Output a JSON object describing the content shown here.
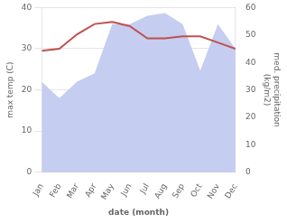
{
  "chart_data": {
    "type": "line",
    "xlabel": "date (month)",
    "ylabel": "max temp (C)",
    "y2label": "med. precipitation\n(kg/m2)",
    "categories": [
      "Jan",
      "Feb",
      "Mar",
      "Apr",
      "May",
      "Jun",
      "Jul",
      "Aug",
      "Sep",
      "Oct",
      "Nov",
      "Dec"
    ],
    "series": [
      {
        "type": "area",
        "axis": "y2",
        "color": "#c5cdf0",
        "values": [
          33,
          27,
          33,
          36,
          54,
          54,
          57,
          58,
          54,
          37,
          54,
          45
        ]
      },
      {
        "type": "line",
        "color": "#c0504d",
        "values": [
          29.5,
          30.0,
          33.5,
          36.0,
          36.5,
          35.5,
          32.5,
          32.5,
          33.0,
          33.0,
          31.5,
          30.0
        ]
      }
    ],
    "ylim": [
      0,
      40
    ],
    "yticks": [
      0,
      10,
      20,
      30,
      40
    ],
    "y2lim": [
      0,
      60
    ],
    "y2ticks": [
      0,
      10,
      20,
      30,
      40,
      50,
      60
    ],
    "grid": true
  }
}
